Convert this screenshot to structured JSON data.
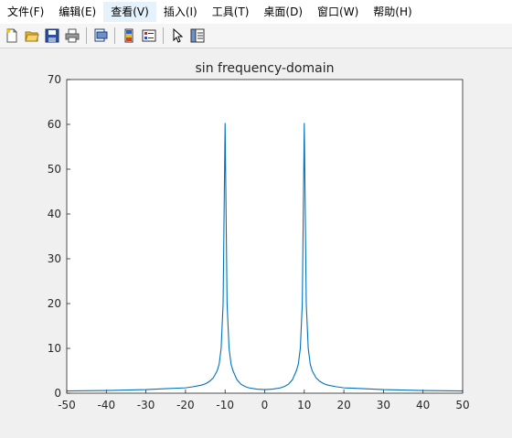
{
  "menubar": {
    "items": [
      "文件(F)",
      "编辑(E)",
      "查看(V)",
      "插入(I)",
      "工具(T)",
      "桌面(D)",
      "窗口(W)",
      "帮助(H)"
    ]
  },
  "toolbar": {
    "icons": [
      "new-file-icon",
      "open-folder-icon",
      "save-icon",
      "print-icon",
      "print-preview-icon",
      "colorbar-icon",
      "legend-icon",
      "pointer-icon",
      "property-editor-icon"
    ]
  },
  "colors": {
    "line": "#0072bd",
    "axes_bg": "#ffffff",
    "figure_bg": "#f0f0f0"
  },
  "chart_data": {
    "type": "line",
    "title": "sin frequency-domain",
    "xlabel": "",
    "ylabel": "",
    "xlim": [
      -50,
      50
    ],
    "ylim": [
      0,
      70
    ],
    "xticks": [
      -50,
      -40,
      -30,
      -20,
      -10,
      0,
      10,
      20,
      30,
      40,
      50
    ],
    "yticks": [
      0,
      10,
      20,
      30,
      40,
      50,
      60,
      70
    ],
    "grid": false,
    "series": [
      {
        "x": [
          -50,
          -45,
          -40,
          -35,
          -30,
          -25,
          -20,
          -18,
          -16,
          -15,
          -14,
          -13,
          -12,
          -11.5,
          -11,
          -10.5,
          -10,
          -9.5,
          -9,
          -8.5,
          -8,
          -7,
          -6,
          -5,
          -4,
          -2,
          0,
          2,
          4,
          5,
          6,
          7,
          8,
          8.5,
          9,
          9.5,
          10,
          10.5,
          11,
          11.5,
          12,
          13,
          14,
          15,
          16,
          18,
          20,
          25,
          30,
          35,
          40,
          45,
          50
        ],
        "y": [
          0.5,
          0.55,
          0.6,
          0.7,
          0.8,
          1.0,
          1.2,
          1.45,
          1.8,
          2.1,
          2.6,
          3.4,
          5.0,
          6.5,
          10,
          20,
          60.3,
          20,
          10,
          6.5,
          5.0,
          3.0,
          2.0,
          1.5,
          1.2,
          0.9,
          0.8,
          0.9,
          1.2,
          1.5,
          2.0,
          3.0,
          5.0,
          6.5,
          10,
          20,
          60.3,
          20,
          10,
          6.5,
          5.0,
          3.4,
          2.6,
          2.1,
          1.8,
          1.45,
          1.2,
          1.0,
          0.8,
          0.7,
          0.6,
          0.55,
          0.5
        ]
      }
    ]
  }
}
